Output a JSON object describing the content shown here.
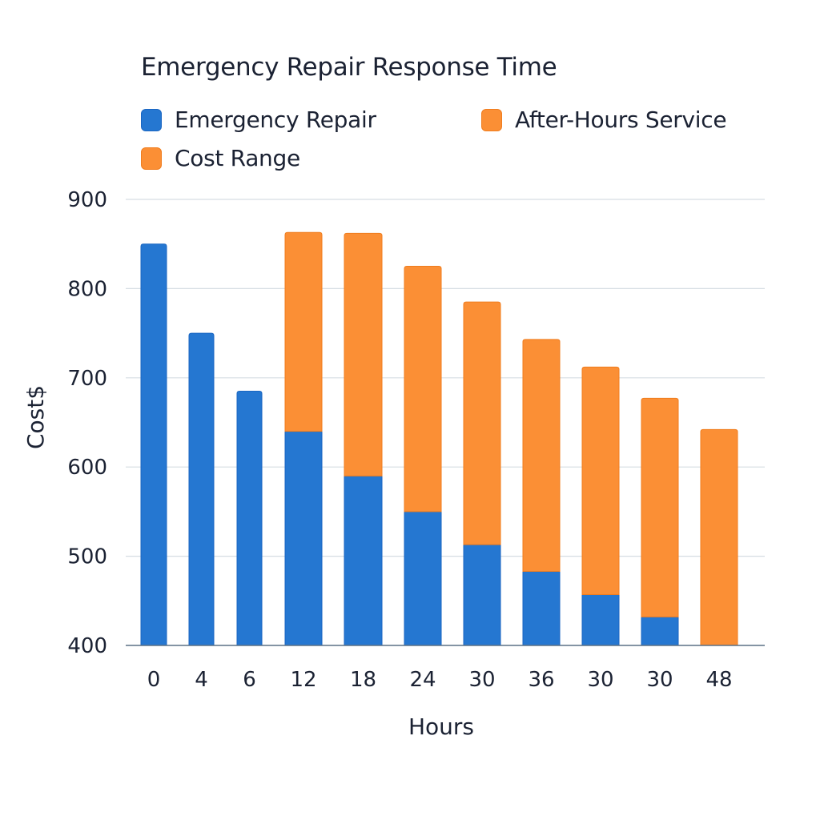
{
  "chart_data": {
    "type": "bar",
    "stacked": true,
    "title": "Emergency Repair Response Time",
    "xlabel": "Hours",
    "ylabel": "Cost$",
    "ylim": [
      400,
      900
    ],
    "yticks": [
      400,
      500,
      600,
      700,
      800,
      900
    ],
    "grid": true,
    "legend_position": "top",
    "categories": [
      "0",
      "4",
      "6",
      "12",
      "18",
      "24",
      "30",
      "36",
      "30",
      "30",
      "48"
    ],
    "series": [
      {
        "name": "Emergency Repair",
        "color": "#2577d1",
        "values": [
          850,
          750,
          685,
          640,
          590,
          550,
          513,
          483,
          457,
          432,
          null
        ]
      },
      {
        "name": "After-Hours Service",
        "color": "#fb8f35",
        "top_values": [
          null,
          null,
          null,
          863,
          862,
          825,
          785,
          743,
          712,
          677,
          642
        ]
      }
    ],
    "legend": [
      {
        "label": "Emergency Repair",
        "color": "#2577d1"
      },
      {
        "label": "After-Hours Service",
        "color": "#fb8f35"
      },
      {
        "label": "Cost Range",
        "color": "#fb8f35"
      }
    ]
  },
  "colors": {
    "grid": "#d6dde3",
    "axis": "#5b7085",
    "blue_border": "#1a66c2",
    "orange_border": "#f07d1e"
  }
}
